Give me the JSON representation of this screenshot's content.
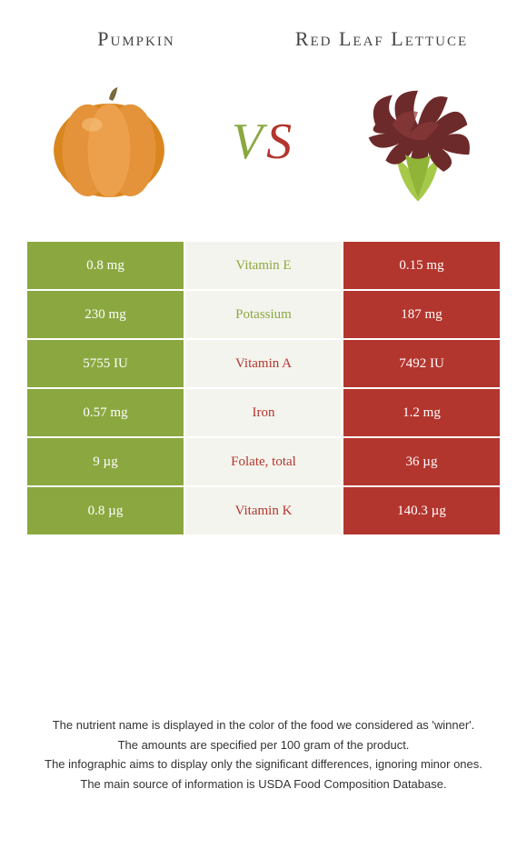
{
  "header": {
    "left": "Pumpkin",
    "right": "Red Leaf Lettuce"
  },
  "vs": {
    "v": "V",
    "s": "S"
  },
  "colors": {
    "left": "#8ba840",
    "right": "#b3362e",
    "mid_bg": "#f4f4ee"
  },
  "rows": [
    {
      "left": "0.8 mg",
      "label": "Vitamin E",
      "right": "0.15 mg",
      "winner": "left"
    },
    {
      "left": "230 mg",
      "label": "Potassium",
      "right": "187 mg",
      "winner": "left"
    },
    {
      "left": "5755 IU",
      "label": "Vitamin A",
      "right": "7492 IU",
      "winner": "right"
    },
    {
      "left": "0.57 mg",
      "label": "Iron",
      "right": "1.2 mg",
      "winner": "right"
    },
    {
      "left": "9 µg",
      "label": "Folate, total",
      "right": "36 µg",
      "winner": "right"
    },
    {
      "left": "0.8 µg",
      "label": "Vitamin K",
      "right": "140.3 µg",
      "winner": "right"
    }
  ],
  "footnotes": [
    "The nutrient name is displayed in the color of the food we considered as 'winner'.",
    "The amounts are specified per 100 gram of the product.",
    "The infographic aims to display only the significant differences, ignoring minor ones.",
    "The main source of information is USDA Food Composition Database."
  ]
}
